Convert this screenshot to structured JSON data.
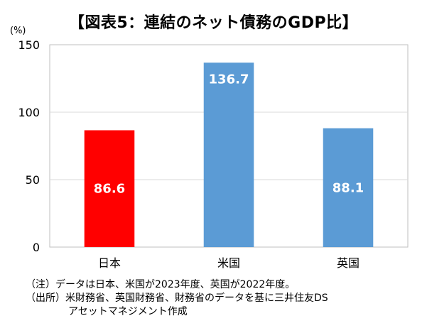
{
  "chart_data": {
    "type": "bar",
    "title": "【図表5：連結のネット債務のGDP比】",
    "unit_label": "(%)",
    "categories": [
      "日本",
      "米国",
      "英国"
    ],
    "values": [
      86.6,
      136.7,
      88.1
    ],
    "data_labels": [
      "86.6",
      "136.7",
      "88.1"
    ],
    "bar_colors": [
      "#ff0000",
      "#5b9bd5",
      "#5b9bd5"
    ],
    "ylim": [
      0,
      150
    ],
    "yticks": [
      0,
      50,
      100,
      150
    ],
    "grid": true,
    "legend": "none",
    "xlabel": "",
    "ylabel": ""
  },
  "notes": {
    "line1": "（注）データは日本、米国が2023年度、英国が2022年度。",
    "line2": "（出所）米財務省、英国財務省、財務省のデータを基に三井住友DS",
    "line3": "アセットマネジメント作成"
  },
  "colors": {
    "grid": "#d9d9d9",
    "axis": "#bfbfbf",
    "label_on_bar": "#ffffff"
  }
}
